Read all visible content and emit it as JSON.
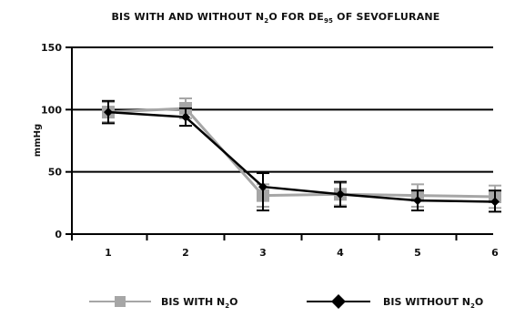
{
  "chart_data": {
    "type": "line",
    "title": {
      "pre": "BIS WITH AND WITHOUT N",
      "pre_sub": "2",
      "mid": "O FOR DE",
      "mid_sub": "95",
      "post": " OF SEVOFLURANE"
    },
    "ylabel": "mmHg",
    "xlabel": "",
    "ylim": [
      0,
      150
    ],
    "yticks": [
      "0",
      "50",
      "100",
      "150"
    ],
    "y_tick_values": [
      0,
      50,
      100,
      150
    ],
    "categories": [
      "1",
      "2",
      "3",
      "4",
      "5",
      "6"
    ],
    "grid": true,
    "legend_position": "bottom",
    "series": [
      {
        "name": {
          "pre": "BIS WITH N",
          "sub": "2",
          "post": "O"
        },
        "marker": "square",
        "color": "#a6a6a6",
        "values": [
          98,
          101,
          31,
          32,
          31,
          30
        ],
        "error_high": [
          106,
          109,
          40,
          41,
          40,
          39
        ],
        "error_low": [
          90,
          93,
          22,
          23,
          22,
          21
        ]
      },
      {
        "name": {
          "pre": "BIS WITHOUT N",
          "sub": "2",
          "post": "O"
        },
        "marker": "diamond",
        "color": "#000000",
        "values": [
          98,
          94,
          38,
          32,
          27,
          26
        ],
        "error_high": [
          107,
          101,
          49,
          42,
          35,
          35
        ],
        "error_low": [
          89,
          87,
          19,
          22,
          19,
          18
        ]
      }
    ]
  }
}
